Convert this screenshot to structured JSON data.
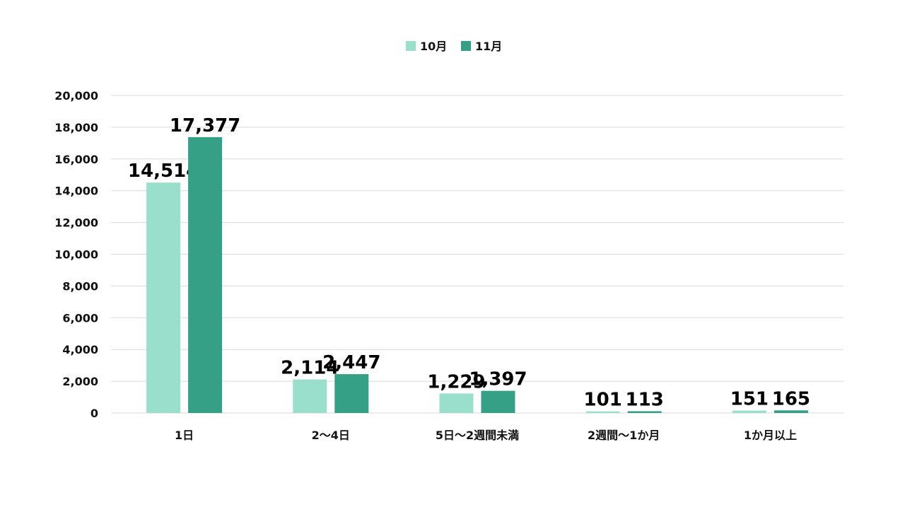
{
  "chart_data": {
    "type": "bar",
    "categories": [
      "1日",
      "2～4日",
      "5日～2週間未満",
      "2週間～1か月",
      "1か月以上"
    ],
    "series": [
      {
        "name": "10月",
        "color": "#99dfcc",
        "values": [
          14514,
          2114,
          1229,
          101,
          151
        ]
      },
      {
        "name": "11月",
        "color": "#35a085",
        "values": [
          17377,
          2447,
          1397,
          113,
          165
        ]
      }
    ],
    "ylim": [
      0,
      20000
    ],
    "yticks": [
      0,
      2000,
      4000,
      6000,
      8000,
      10000,
      12000,
      14000,
      16000,
      18000,
      20000
    ],
    "ytick_labels": [
      "0",
      "2,000",
      "4,000",
      "6,000",
      "8,000",
      "10,000",
      "12,000",
      "14,000",
      "16,000",
      "18,000",
      "20,000"
    ],
    "data_labels": [
      [
        "14,514",
        "2,114",
        "1,229",
        "101",
        "151"
      ],
      [
        "17,377",
        "2,447",
        "1,397",
        "113",
        "165"
      ]
    ],
    "grid": true,
    "legend_position": "top-center",
    "title": "",
    "xlabel": "",
    "ylabel": ""
  }
}
